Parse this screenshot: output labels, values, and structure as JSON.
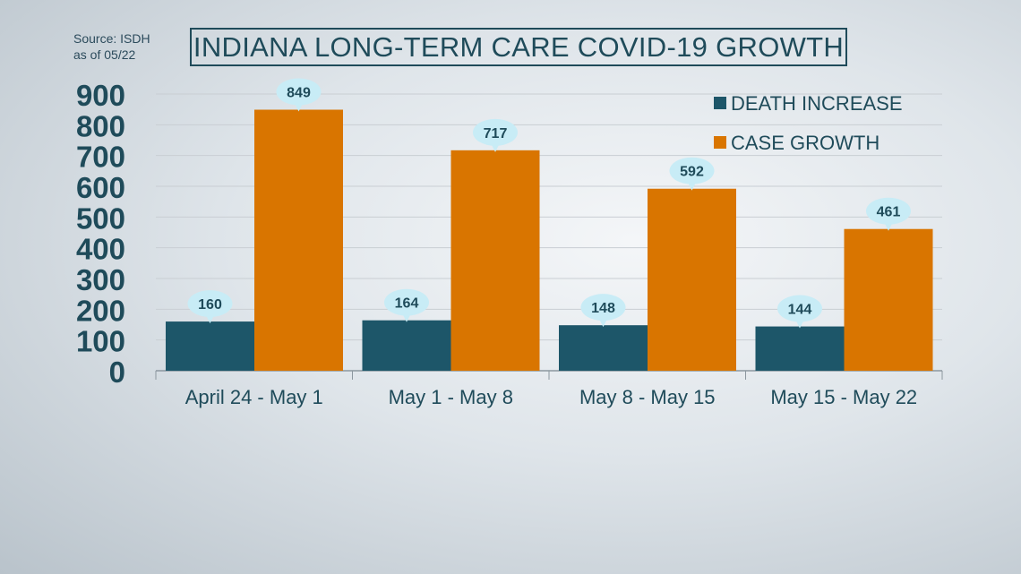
{
  "source": {
    "line1": "Source: ISDH",
    "line2": "as of 05/22"
  },
  "colors": {
    "death": "#1d5669",
    "case": "#d97500",
    "bubble": "#c8ecf6",
    "axis_text": "#1f4b5a",
    "grid": "#c9ced3"
  },
  "chart_data": {
    "type": "bar",
    "title": "INDIANA LONG-TERM CARE COVID-19 GROWTH",
    "categories": [
      "April 24 - May 1",
      "May 1 - May 8",
      "May 8 - May 15",
      "May 15 - May 22"
    ],
    "series": [
      {
        "name": "DEATH INCREASE",
        "values": [
          160,
          164,
          148,
          144
        ]
      },
      {
        "name": "CASE GROWTH",
        "values": [
          849,
          717,
          592,
          461
        ]
      }
    ],
    "y_ticks": [
      "0",
      "100",
      "200",
      "300",
      "400",
      "500",
      "600",
      "700",
      "800",
      "900"
    ],
    "ylim": [
      0,
      900
    ],
    "grid": true,
    "legend": "top-right",
    "xlabel": "",
    "ylabel": ""
  }
}
